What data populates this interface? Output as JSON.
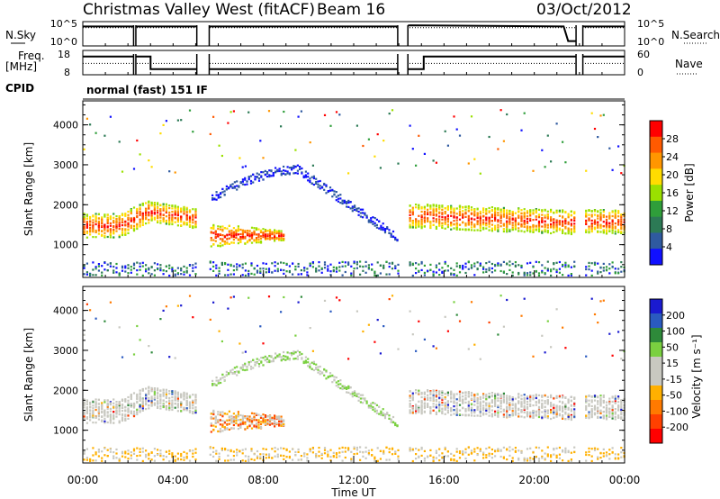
{
  "header": {
    "station": "Christmas Valley West (fitACF)",
    "beam": "Beam 16",
    "date": "03/Oct/2012",
    "cpid_label": "CPID",
    "cpid_value": "normal (fast) 151 IF"
  },
  "chart_data": [
    {
      "type": "line",
      "id": "noise",
      "left_label": "N.Sky",
      "right_label": "N.Search",
      "left_ticks": [
        "10^5",
        "10^0"
      ],
      "right_ticks": [
        "10^5",
        "10^0"
      ],
      "series": [
        {
          "name": "N.Sky",
          "style": "solid"
        },
        {
          "name": "N.Search",
          "style": "dotted"
        }
      ],
      "x": [
        0,
        5,
        5.4,
        13.9,
        14.5,
        21.3,
        21.5,
        21.9,
        22,
        24
      ],
      "y": [
        0.8,
        0.8,
        0.8,
        0.8,
        0.85,
        0.8,
        0.2,
        0.2,
        0.8,
        0.8
      ],
      "gaps_hours": [
        [
          2.25,
          2.35
        ],
        [
          5.05,
          5.6
        ],
        [
          13.95,
          14.4
        ],
        [
          21.85,
          22.15
        ]
      ]
    },
    {
      "type": "line",
      "id": "freq-nave",
      "left_label": "Freq.\n[MHz]",
      "right_label": "Nave",
      "left_ticks": [
        "18",
        "8"
      ],
      "right_ticks": [
        "60",
        "0"
      ],
      "ylim_left": [
        8,
        18
      ],
      "ylim_right": [
        0,
        60
      ],
      "x": [
        0,
        3,
        3,
        5.05,
        5.6,
        13.95,
        14.4,
        15.1,
        15.1,
        22.15,
        24
      ],
      "freq": [
        15.5,
        15.5,
        10.3,
        10.3,
        10.3,
        10.3,
        10.3,
        10.3,
        15.5,
        15.5,
        15.5
      ],
      "nave_dotted": 28
    },
    {
      "type": "heatmap",
      "id": "power",
      "ylabel": "Slant Range [km]",
      "yticks": [
        1000,
        2000,
        3000,
        4000
      ],
      "ylim": [
        180,
        4600
      ],
      "xlim": [
        0,
        24
      ],
      "colorbar": {
        "label": "Power [dB]",
        "ticks": [
          "28",
          "24",
          "20",
          "16",
          "12",
          "8",
          "4"
        ],
        "colors": [
          "#ff0000",
          "#ff5a00",
          "#ff9600",
          "#ffdc00",
          "#9ae000",
          "#2f9e3a",
          "#2c7a55",
          "#2f5aa0",
          "#1010ff"
        ]
      }
    },
    {
      "type": "heatmap",
      "id": "velocity",
      "ylabel": "Slant Range [km]",
      "yticks": [
        1000,
        2000,
        3000,
        4000
      ],
      "ylim": [
        180,
        4600
      ],
      "xlim": [
        0,
        24
      ],
      "xticks": [
        "00:00",
        "04:00",
        "08:00",
        "12:00",
        "16:00",
        "20:00",
        "00:00"
      ],
      "xlabel": "Time UT",
      "colorbar": {
        "label": "Velocity [m s⁻¹]",
        "ticks": [
          "200",
          "100",
          "50",
          "15",
          "-15",
          "-50",
          "-100",
          "-200"
        ],
        "colors": [
          "#1a1ad0",
          "#2a5ac0",
          "#2e8a3a",
          "#7ad040",
          "#c8c8c0",
          "#c8c8c0",
          "#ffb000",
          "#ff7a00",
          "#ff4000",
          "#ff0000"
        ]
      }
    }
  ]
}
